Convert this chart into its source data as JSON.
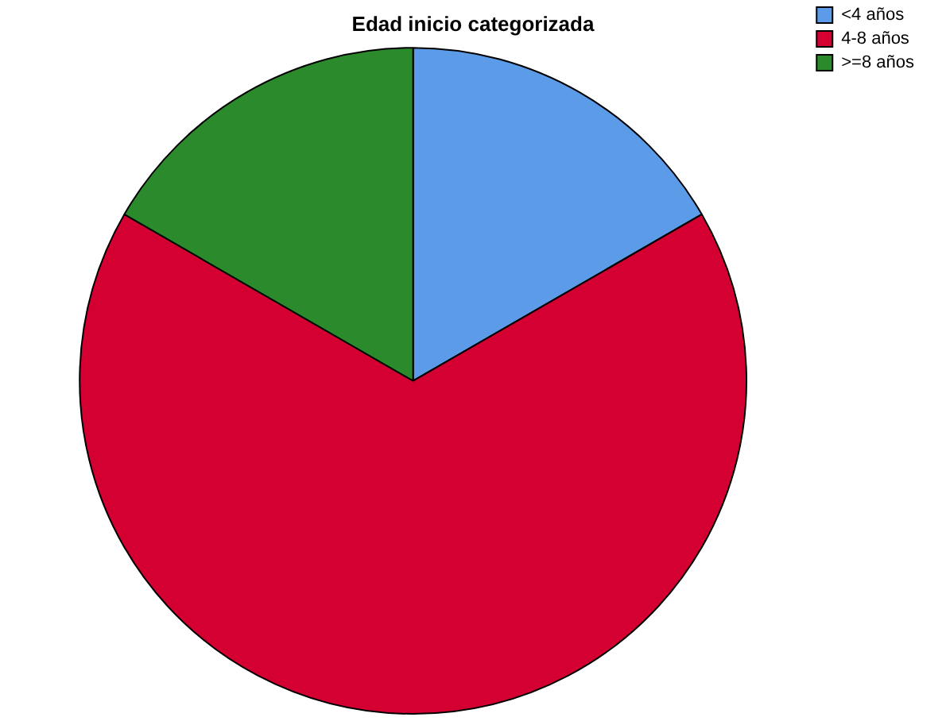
{
  "chart_data": {
    "type": "pie",
    "title": "Edad inicio categorizada",
    "categories": [
      "<4 años",
      "4-8 años",
      ">=8 años"
    ],
    "values": [
      16.67,
      66.66,
      16.67
    ],
    "colors": [
      "#5b9be8",
      "#d50032",
      "#2b8a2b"
    ],
    "legend": "top right"
  }
}
